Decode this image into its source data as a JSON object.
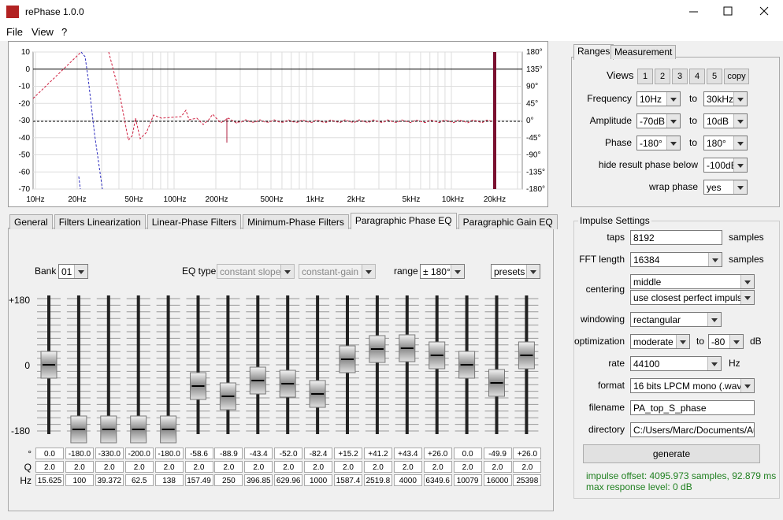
{
  "window": {
    "title": "rePhase 1.0.0"
  },
  "menu": [
    "File",
    "View",
    "?"
  ],
  "plot": {
    "left_ticks": [
      "10",
      "0",
      "-10",
      "-20",
      "-30",
      "-40",
      "-50",
      "-60",
      "-70"
    ],
    "right_ticks": [
      "180°",
      "135°",
      "90°",
      "45°",
      "0°",
      "-45°",
      "-90°",
      "-135°",
      "-180°"
    ],
    "x_ticks": [
      "10Hz",
      "20Hz",
      "50Hz",
      "100Hz",
      "200Hz",
      "500Hz",
      "1kHz",
      "2kHz",
      "5kHz",
      "10kHz",
      "20kHz"
    ]
  },
  "ranges": {
    "tabs": [
      "Ranges",
      "Measurement"
    ],
    "views_label": "Views",
    "views": [
      "1",
      "2",
      "3",
      "4",
      "5",
      "copy"
    ],
    "rows": [
      {
        "label": "Frequency",
        "from": "10Hz",
        "to_label": "to",
        "to": "30kHz"
      },
      {
        "label": "Amplitude",
        "from": "-70dB",
        "to_label": "to",
        "to": "10dB"
      },
      {
        "label": "Phase",
        "from": "-180°",
        "to_label": "to",
        "to": "180°"
      }
    ],
    "hide": {
      "label": "hide result phase below",
      "value": "-100dB"
    },
    "wrap": {
      "label": "wrap phase",
      "value": "yes"
    }
  },
  "impulse": {
    "title": "Impulse Settings",
    "taps": {
      "label": "taps",
      "value": "8192",
      "unit": "samples"
    },
    "fft": {
      "label": "FFT length",
      "value": "16384",
      "unit": "samples"
    },
    "centering": {
      "label": "centering",
      "value": "middle",
      "value2": "use closest perfect impulse"
    },
    "windowing": {
      "label": "windowing",
      "value": "rectangular"
    },
    "optimization": {
      "label": "optimization",
      "value": "moderate",
      "to_label": "to",
      "to": "-80",
      "unit": "dB"
    },
    "rate": {
      "label": "rate",
      "value": "44100",
      "unit": "Hz"
    },
    "format": {
      "label": "format",
      "value": "16 bits LPCM mono (.wav)"
    },
    "filename": {
      "label": "filename",
      "value": "PA_top_S_phase"
    },
    "directory": {
      "label": "directory",
      "value": "C:/Users/Marc/Documents/Audio"
    },
    "generate": "generate",
    "status": [
      "impulse offset: 4095.973 samples, 92.879 ms",
      "max response level: 0 dB"
    ]
  },
  "eq": {
    "tabs": [
      "General",
      "Filters Linearization",
      "Linear-Phase Filters",
      "Minimum-Phase Filters",
      "Paragraphic Phase EQ",
      "Paragraphic Gain EQ"
    ],
    "active_tab": 4,
    "bank_label": "Bank",
    "bank": "01",
    "eq_type_label": "EQ type",
    "eq_type": "constant slope",
    "eq_mode": "constant-gain",
    "range_label": "range",
    "range": "± 180°",
    "presets": "presets",
    "scale": [
      "+180",
      "0",
      "-180"
    ],
    "row_labels": [
      "°",
      "Q",
      "Hz"
    ],
    "bands": [
      {
        "phase": "0.0",
        "q": "2.0",
        "hz": "15.625"
      },
      {
        "phase": "-180.0",
        "q": "2.0",
        "hz": "100"
      },
      {
        "phase": "-330.0",
        "q": "2.0",
        "hz": "39.372"
      },
      {
        "phase": "-200.0",
        "q": "2.0",
        "hz": "62.5"
      },
      {
        "phase": "-180.0",
        "q": "2.0",
        "hz": "138"
      },
      {
        "phase": "-58.6",
        "q": "2.0",
        "hz": "157.49"
      },
      {
        "phase": "-88.9",
        "q": "2.0",
        "hz": "250"
      },
      {
        "phase": "-43.4",
        "q": "2.0",
        "hz": "396.85"
      },
      {
        "phase": "-52.0",
        "q": "2.0",
        "hz": "629.96"
      },
      {
        "phase": "-82.4",
        "q": "2.0",
        "hz": "1000"
      },
      {
        "phase": "+15.2",
        "q": "2.0",
        "hz": "1587.4"
      },
      {
        "phase": "+41.2",
        "q": "2.0",
        "hz": "2519.8"
      },
      {
        "phase": "+43.4",
        "q": "2.0",
        "hz": "4000"
      },
      {
        "phase": "+26.0",
        "q": "2.0",
        "hz": "6349.6"
      },
      {
        "phase": "0.0",
        "q": "2.0",
        "hz": "10079"
      },
      {
        "phase": "-49.9",
        "q": "2.0",
        "hz": "16000"
      },
      {
        "phase": "+26.0",
        "q": "2.0",
        "hz": "25398"
      }
    ]
  }
}
